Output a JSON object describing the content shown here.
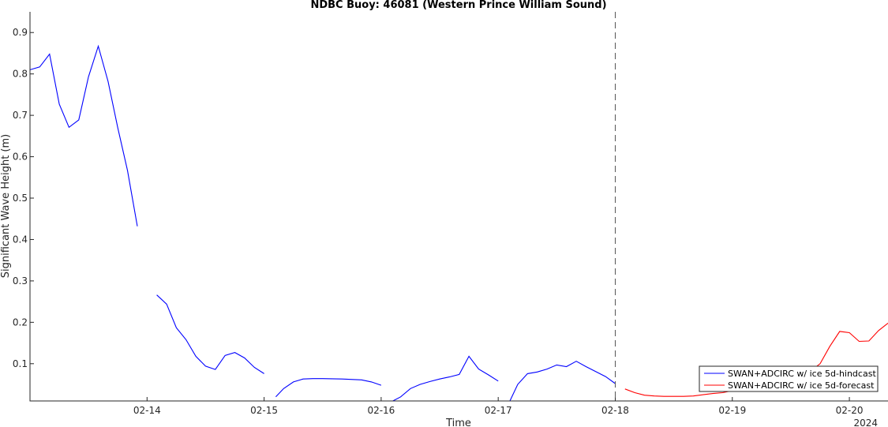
{
  "chart_data": {
    "type": "line",
    "title": "NDBC Buoy: 46081 (Western Prince William Sound)",
    "xlabel": "Time",
    "ylabel": "Significant Wave Height (m)",
    "x_year_label": "2024",
    "xlim": [
      13.0,
      20.33
    ],
    "ylim": [
      0.01,
      0.95
    ],
    "x_ticks": [
      {
        "value": 14,
        "label": "02-14"
      },
      {
        "value": 15,
        "label": "02-15"
      },
      {
        "value": 16,
        "label": "02-16"
      },
      {
        "value": 17,
        "label": "02-17"
      },
      {
        "value": 18,
        "label": "02-18"
      },
      {
        "value": 19,
        "label": "02-19"
      },
      {
        "value": 20,
        "label": "02-20"
      }
    ],
    "y_ticks": [
      {
        "value": 0.1,
        "label": "0.1"
      },
      {
        "value": 0.2,
        "label": "0.2"
      },
      {
        "value": 0.3,
        "label": "0.3"
      },
      {
        "value": 0.4,
        "label": "0.4"
      },
      {
        "value": 0.5,
        "label": "0.5"
      },
      {
        "value": 0.6,
        "label": "0.6"
      },
      {
        "value": 0.7,
        "label": "0.7"
      },
      {
        "value": 0.8,
        "label": "0.8"
      },
      {
        "value": 0.9,
        "label": "0.9"
      }
    ],
    "forecast_start": 18.0,
    "legend_position": "bottom-right",
    "series": [
      {
        "name": "SWAN+ADCIRC w/ ice 5d-hindcast",
        "color": "#0000ff",
        "segments": [
          [
            [
              13.0,
              0.81
            ],
            [
              13.083,
              0.817
            ],
            [
              13.167,
              0.848
            ],
            [
              13.25,
              0.727
            ],
            [
              13.333,
              0.671
            ],
            [
              13.417,
              0.689
            ],
            [
              13.5,
              0.793
            ],
            [
              13.583,
              0.867
            ],
            [
              13.667,
              0.782
            ],
            [
              13.75,
              0.67
            ],
            [
              13.833,
              0.567
            ],
            [
              13.917,
              0.432
            ]
          ],
          [
            [
              14.083,
              0.266
            ],
            [
              14.167,
              0.244
            ],
            [
              14.25,
              0.187
            ],
            [
              14.333,
              0.158
            ],
            [
              14.417,
              0.118
            ],
            [
              14.5,
              0.094
            ],
            [
              14.583,
              0.086
            ],
            [
              14.667,
              0.12
            ],
            [
              14.75,
              0.127
            ],
            [
              14.833,
              0.114
            ],
            [
              14.917,
              0.091
            ],
            [
              15.0,
              0.076
            ]
          ],
          [
            [
              15.1,
              0.02
            ],
            [
              15.167,
              0.04
            ],
            [
              15.25,
              0.056
            ],
            [
              15.333,
              0.063
            ],
            [
              15.417,
              0.064
            ],
            [
              15.5,
              0.064
            ],
            [
              15.667,
              0.063
            ],
            [
              15.833,
              0.061
            ],
            [
              15.917,
              0.056
            ],
            [
              16.0,
              0.048
            ]
          ],
          [
            [
              16.1,
              0.01
            ],
            [
              16.167,
              0.02
            ],
            [
              16.25,
              0.04
            ],
            [
              16.333,
              0.05
            ],
            [
              16.417,
              0.057
            ],
            [
              16.5,
              0.063
            ],
            [
              16.583,
              0.068
            ],
            [
              16.667,
              0.074
            ],
            [
              16.75,
              0.118
            ],
            [
              16.833,
              0.087
            ],
            [
              16.917,
              0.073
            ],
            [
              17.0,
              0.058
            ]
          ],
          [
            [
              17.1,
              0.01
            ],
            [
              17.167,
              0.05
            ],
            [
              17.25,
              0.076
            ],
            [
              17.333,
              0.08
            ],
            [
              17.417,
              0.087
            ],
            [
              17.5,
              0.097
            ],
            [
              17.583,
              0.093
            ],
            [
              17.667,
              0.106
            ],
            [
              17.75,
              0.093
            ],
            [
              17.833,
              0.081
            ],
            [
              17.917,
              0.069
            ],
            [
              18.0,
              0.052
            ]
          ]
        ]
      },
      {
        "name": "SWAN+ADCIRC w/ ice 5d-forecast",
        "color": "#ff0000",
        "segments": [
          [
            [
              18.083,
              0.039
            ],
            [
              18.167,
              0.03
            ],
            [
              18.25,
              0.024
            ],
            [
              18.333,
              0.022
            ],
            [
              18.417,
              0.021
            ],
            [
              18.5,
              0.021
            ],
            [
              18.583,
              0.021
            ],
            [
              18.667,
              0.022
            ],
            [
              18.75,
              0.025
            ],
            [
              18.833,
              0.028
            ],
            [
              18.917,
              0.03
            ],
            [
              19.0,
              0.035
            ],
            [
              19.083,
              0.04
            ],
            [
              19.167,
              0.045
            ],
            [
              19.25,
              0.05
            ],
            [
              19.333,
              0.055
            ],
            [
              19.417,
              0.06
            ],
            [
              19.5,
              0.066
            ],
            [
              19.583,
              0.073
            ],
            [
              19.667,
              0.082
            ],
            [
              19.75,
              0.1
            ],
            [
              19.833,
              0.142
            ],
            [
              19.917,
              0.178
            ],
            [
              20.0,
              0.175
            ],
            [
              20.083,
              0.154
            ],
            [
              20.167,
              0.155
            ],
            [
              20.25,
              0.18
            ],
            [
              20.33,
              0.198
            ]
          ]
        ]
      }
    ]
  }
}
